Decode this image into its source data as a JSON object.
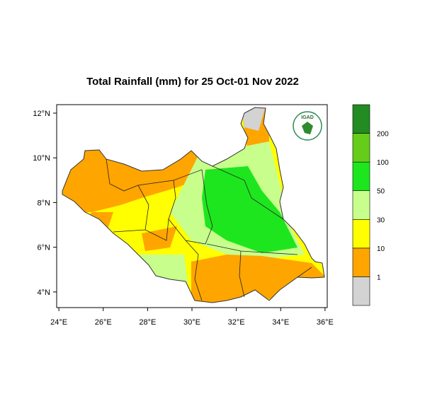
{
  "chart_data": {
    "type": "map",
    "title": "Total Rainfall (mm) for 25 Oct-01 Nov 2022",
    "logo": "IGAD",
    "xlim": [
      23.9,
      36.1
    ],
    "ylim": [
      3.3,
      12.38
    ],
    "xticks": [
      {
        "value": 24,
        "label": "24°E"
      },
      {
        "value": 26,
        "label": "26°E"
      },
      {
        "value": 28,
        "label": "28°E"
      },
      {
        "value": 30,
        "label": "30°E"
      },
      {
        "value": 32,
        "label": "32°E"
      },
      {
        "value": 34,
        "label": "34°E"
      },
      {
        "value": 36,
        "label": "36°E"
      }
    ],
    "yticks": [
      {
        "value": 4,
        "label": "4°N"
      },
      {
        "value": 6,
        "label": "6°N"
      },
      {
        "value": 8,
        "label": "8°N"
      },
      {
        "value": 10,
        "label": "10°N"
      },
      {
        "value": 12,
        "label": "12°N"
      }
    ],
    "colorbar": {
      "levels": [
        1,
        10,
        30,
        50,
        100,
        200
      ],
      "colors": [
        "#d3d3d3",
        "#ffa500",
        "#ffff00",
        "#c8ff8c",
        "#1ee61e",
        "#66cc1a",
        "#228b22"
      ]
    }
  }
}
